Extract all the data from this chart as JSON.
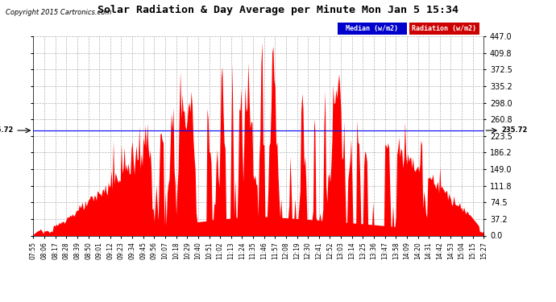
{
  "title": "Solar Radiation & Day Average per Minute Mon Jan 5 15:34",
  "copyright": "Copyright 2015 Cartronics.com",
  "ylabel_right_ticks": [
    0.0,
    37.2,
    74.5,
    111.8,
    149.0,
    186.2,
    223.5,
    260.8,
    298.0,
    335.2,
    372.5,
    409.8,
    447.0
  ],
  "ymax": 447.0,
  "ymin": 0.0,
  "median_value": 235.72,
  "median_label": "235.72",
  "area_color": "#FF0000",
  "median_line_color": "#0000FF",
  "background_color": "#FFFFFF",
  "plot_bg_color": "#FFFFFF",
  "legend": [
    {
      "label": "Median (w/m2)",
      "color": "#0000CC"
    },
    {
      "label": "Radiation (w/m2)",
      "color": "#CC0000"
    }
  ],
  "x_labels": [
    "07:55",
    "08:06",
    "08:17",
    "08:28",
    "08:39",
    "08:50",
    "09:01",
    "09:12",
    "09:23",
    "09:34",
    "09:45",
    "09:56",
    "10:07",
    "10:18",
    "10:29",
    "10:40",
    "10:51",
    "11:02",
    "11:13",
    "11:24",
    "11:35",
    "11:46",
    "11:57",
    "12:08",
    "12:19",
    "12:30",
    "12:41",
    "12:52",
    "13:03",
    "13:14",
    "13:25",
    "13:36",
    "13:47",
    "13:58",
    "14:09",
    "14:20",
    "14:31",
    "14:42",
    "14:53",
    "15:04",
    "15:15",
    "15:27"
  ]
}
